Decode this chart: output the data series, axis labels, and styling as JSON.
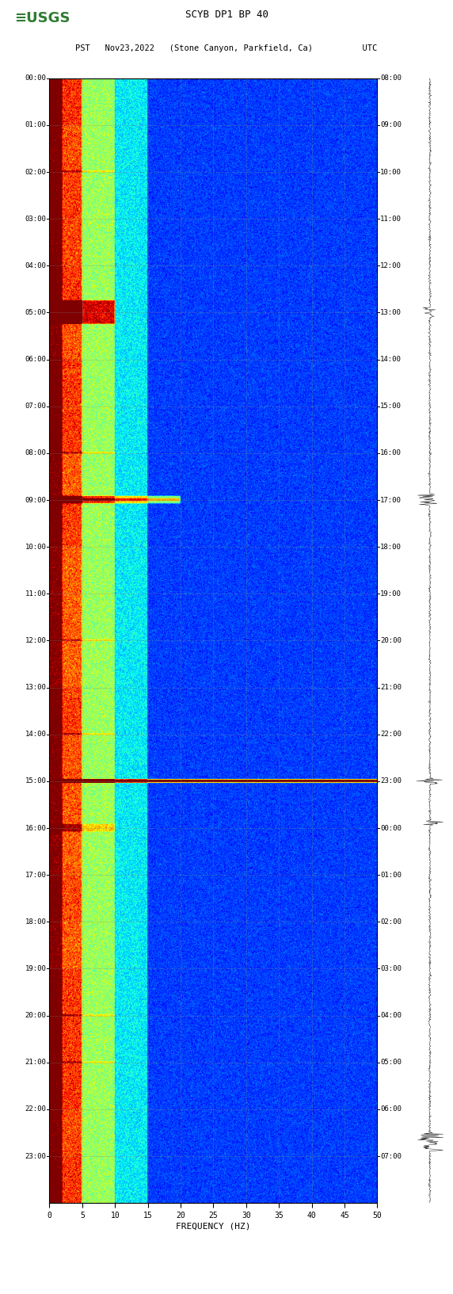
{
  "title_line1": "SCYB DP1 BP 40",
  "title_line2": "PST   Nov23,2022   (Stone Canyon, Parkfield, Ca)          UTC",
  "xlabel": "FREQUENCY (HZ)",
  "left_time_labels": [
    "00:00",
    "01:00",
    "02:00",
    "03:00",
    "04:00",
    "05:00",
    "06:00",
    "07:00",
    "08:00",
    "09:00",
    "10:00",
    "11:00",
    "12:00",
    "13:00",
    "14:00",
    "15:00",
    "16:00",
    "17:00",
    "18:00",
    "19:00",
    "20:00",
    "21:00",
    "22:00",
    "23:00"
  ],
  "right_time_labels": [
    "08:00",
    "09:00",
    "10:00",
    "11:00",
    "12:00",
    "13:00",
    "14:00",
    "15:00",
    "16:00",
    "17:00",
    "18:00",
    "19:00",
    "20:00",
    "21:00",
    "22:00",
    "23:00",
    "00:00",
    "01:00",
    "02:00",
    "03:00",
    "04:00",
    "05:00",
    "06:00",
    "07:00"
  ],
  "freq_min": 0,
  "freq_max": 50,
  "freq_ticks": [
    0,
    5,
    10,
    15,
    20,
    25,
    30,
    35,
    40,
    45,
    50
  ],
  "n_hours": 24,
  "background_color": "#ffffff",
  "colormap": "jet",
  "seismogram_color": "#000000",
  "logo_color": "#2e7d32",
  "grid_color": "#808080",
  "grid_alpha": 0.35,
  "vmin": -2.0,
  "vmax": 4.5
}
